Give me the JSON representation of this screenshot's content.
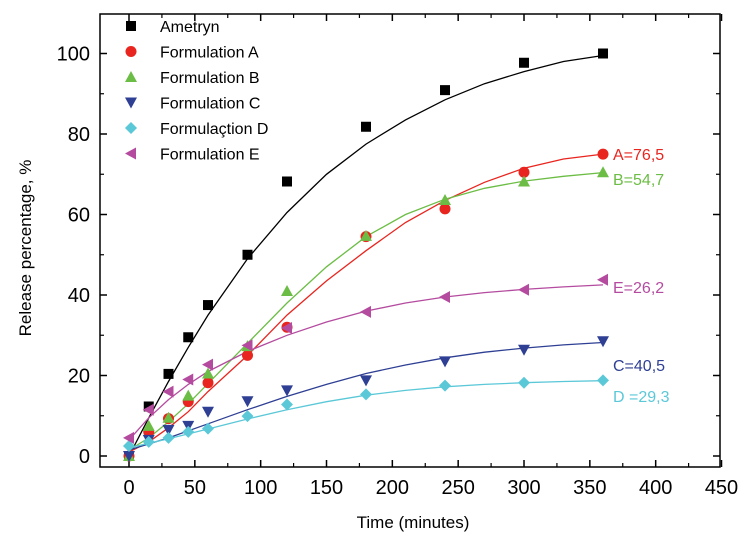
{
  "chart_data": {
    "type": "scatter",
    "xlabel": "Time (minutes)",
    "ylabel": "Release percentage,  %",
    "xlim": [
      -20,
      450
    ],
    "ylim": [
      -3,
      110
    ],
    "xticks": [
      0,
      50,
      100,
      150,
      200,
      250,
      300,
      350,
      400,
      450
    ],
    "yticks": [
      0,
      20,
      40,
      60,
      80,
      100
    ],
    "legend_position": "top-left",
    "grid": false,
    "series": [
      {
        "name": "Ametryn",
        "color": "#000000",
        "marker": "square",
        "x": [
          0,
          15,
          30,
          45,
          60,
          90,
          120,
          180,
          240,
          300,
          360
        ],
        "y": [
          0,
          12.3,
          20.4,
          29.5,
          37.5,
          50.0,
          68.2,
          81.8,
          90.9,
          97.7,
          100.0
        ],
        "end_label": "",
        "fit": [
          [
            0,
            0
          ],
          [
            15,
            9.5
          ],
          [
            30,
            18.5
          ],
          [
            45,
            27
          ],
          [
            60,
            35
          ],
          [
            90,
            49
          ],
          [
            120,
            60.5
          ],
          [
            150,
            70
          ],
          [
            180,
            77.5
          ],
          [
            210,
            83.5
          ],
          [
            240,
            88.5
          ],
          [
            270,
            92.5
          ],
          [
            300,
            95.5
          ],
          [
            330,
            98
          ],
          [
            360,
            99.5
          ]
        ]
      },
      {
        "name": "Formulation A",
        "color": "#e8251f",
        "marker": "circle",
        "x": [
          0,
          15,
          30,
          45,
          60,
          90,
          120,
          180,
          240,
          300,
          360
        ],
        "y": [
          0,
          6.0,
          9.3,
          13.5,
          18.2,
          25.0,
          32.0,
          54.5,
          61.4,
          70.5,
          75.0
        ],
        "end_label": "A=76,5",
        "fit": [
          [
            0,
            1
          ],
          [
            15,
            3.5
          ],
          [
            30,
            7
          ],
          [
            45,
            11
          ],
          [
            60,
            16
          ],
          [
            90,
            25
          ],
          [
            120,
            35
          ],
          [
            150,
            43.5
          ],
          [
            180,
            51
          ],
          [
            210,
            58
          ],
          [
            240,
            63.5
          ],
          [
            270,
            68
          ],
          [
            300,
            71.5
          ],
          [
            330,
            73.8
          ],
          [
            360,
            75
          ]
        ]
      },
      {
        "name": "Formulation B",
        "color": "#6cbd45",
        "marker": "triangle-up",
        "x": [
          0,
          15,
          30,
          45,
          60,
          90,
          120,
          180,
          240,
          300,
          360
        ],
        "y": [
          0,
          7.5,
          9.5,
          15.0,
          20.5,
          27.3,
          41.0,
          54.7,
          63.6,
          68.2,
          70.5
        ],
        "end_label": "B=54,7",
        "fit": [
          [
            0,
            1.5
          ],
          [
            15,
            4.5
          ],
          [
            30,
            8.5
          ],
          [
            45,
            13
          ],
          [
            60,
            18
          ],
          [
            90,
            28
          ],
          [
            120,
            38
          ],
          [
            150,
            47
          ],
          [
            180,
            54.5
          ],
          [
            210,
            60
          ],
          [
            240,
            63.8
          ],
          [
            270,
            66.5
          ],
          [
            300,
            68.3
          ],
          [
            330,
            69.5
          ],
          [
            360,
            70.4
          ]
        ]
      },
      {
        "name": "Formulation C",
        "color": "#2e3f94",
        "marker": "triangle-down",
        "x": [
          0,
          15,
          30,
          45,
          60,
          90,
          120,
          180,
          240,
          300,
          360
        ],
        "y": [
          0,
          4.0,
          6.5,
          7.5,
          11.0,
          13.6,
          16.3,
          18.8,
          23.5,
          26.4,
          28.5
        ],
        "end_label": "C=40,5",
        "fit": [
          [
            0,
            1.5
          ],
          [
            30,
            4.5
          ],
          [
            60,
            8
          ],
          [
            90,
            11.5
          ],
          [
            120,
            14.8
          ],
          [
            150,
            17.8
          ],
          [
            180,
            20.5
          ],
          [
            210,
            22.6
          ],
          [
            240,
            24.4
          ],
          [
            270,
            25.8
          ],
          [
            300,
            26.8
          ],
          [
            330,
            27.6
          ],
          [
            360,
            28.2
          ]
        ]
      },
      {
        "name": "Formulaçtion D",
        "color": "#5bc8d8",
        "marker": "diamond",
        "x": [
          0,
          15,
          30,
          45,
          60,
          90,
          120,
          180,
          240,
          300,
          360
        ],
        "y": [
          2.5,
          3.5,
          4.5,
          6.0,
          6.8,
          9.9,
          12.8,
          15.3,
          17.5,
          18.2,
          18.8
        ],
        "end_label": "D =29,3",
        "fit": [
          [
            0,
            2
          ],
          [
            30,
            4.3
          ],
          [
            60,
            6.7
          ],
          [
            90,
            9.2
          ],
          [
            120,
            11.5
          ],
          [
            150,
            13.5
          ],
          [
            180,
            15.1
          ],
          [
            210,
            16.3
          ],
          [
            240,
            17.2
          ],
          [
            270,
            17.8
          ],
          [
            300,
            18.2
          ],
          [
            330,
            18.5
          ],
          [
            360,
            18.7
          ]
        ]
      },
      {
        "name": "Formulation E",
        "color": "#b44b9f",
        "marker": "triangle-left",
        "x": [
          0,
          15,
          30,
          45,
          60,
          90,
          120,
          180,
          240,
          300,
          360
        ],
        "y": [
          4.5,
          11.5,
          16.0,
          19.0,
          22.7,
          27.5,
          31.8,
          35.8,
          39.5,
          41.3,
          43.8
        ],
        "end_label": "E=26,2",
        "fit": [
          [
            0,
            4
          ],
          [
            15,
            9.5
          ],
          [
            30,
            14
          ],
          [
            45,
            17.8
          ],
          [
            60,
            21
          ],
          [
            90,
            26
          ],
          [
            120,
            30
          ],
          [
            150,
            33.3
          ],
          [
            180,
            36
          ],
          [
            210,
            38
          ],
          [
            240,
            39.5
          ],
          [
            270,
            40.6
          ],
          [
            300,
            41.4
          ],
          [
            330,
            42
          ],
          [
            360,
            42.5
          ]
        ]
      }
    ]
  }
}
